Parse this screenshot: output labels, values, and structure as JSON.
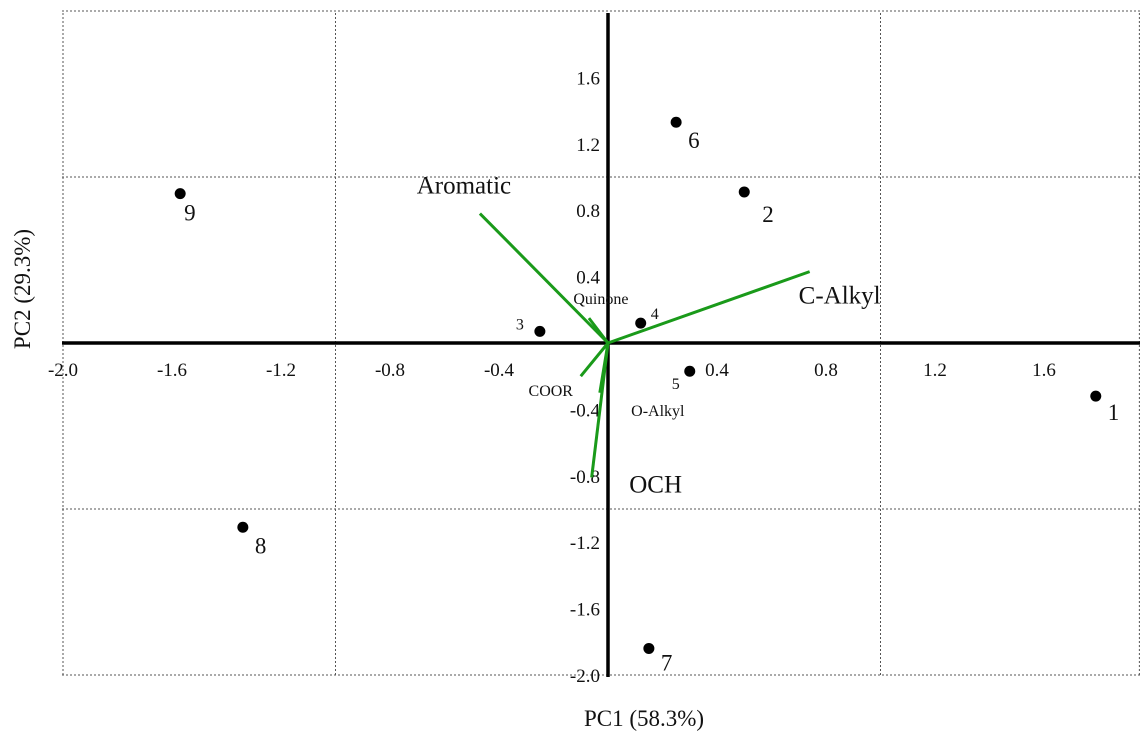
{
  "chart_data": {
    "type": "scatter",
    "xlabel": "PC1 (58.3%)",
    "ylabel": "PC2 (29.3%)",
    "xlim": [
      -2.0,
      1.95
    ],
    "ylim": [
      -2.05,
      2.05
    ],
    "x_ticks": [
      -2.0,
      -1.6,
      -1.2,
      -0.8,
      -0.4,
      0.4,
      0.8,
      1.2,
      1.6
    ],
    "x_tick_labels": [
      "-2.0",
      "-1.6",
      "-1.2",
      "-0.8",
      "-0.4",
      "0.4",
      "0.8",
      "1.2",
      "1.6"
    ],
    "y_ticks": [
      1.6,
      1.2,
      0.8,
      0.4,
      -0.4,
      -0.8,
      -1.2,
      -1.6,
      -2.0
    ],
    "y_tick_labels": [
      "1.6",
      "1.2",
      "0.8",
      "0.4",
      "-0.4",
      "-0.8",
      "-1.2",
      "-1.6",
      "-2.0"
    ],
    "grid": true,
    "grid_x": [
      -2.0,
      -1.0,
      1.0,
      1.95
    ],
    "grid_y": [
      2.0,
      1.0,
      -1.0,
      -2.0
    ],
    "points": [
      {
        "label": "1",
        "x": 1.79,
        "y": -0.32
      },
      {
        "label": "2",
        "x": 0.5,
        "y": 0.91
      },
      {
        "label": "3",
        "x": -0.25,
        "y": 0.07
      },
      {
        "label": "4",
        "x": 0.12,
        "y": 0.12
      },
      {
        "label": "5",
        "x": 0.3,
        "y": -0.17
      },
      {
        "label": "6",
        "x": 0.25,
        "y": 1.33
      },
      {
        "label": "7",
        "x": 0.15,
        "y": -1.84
      },
      {
        "label": "8",
        "x": -1.34,
        "y": -1.11
      },
      {
        "label": "9",
        "x": -1.57,
        "y": 0.9
      }
    ],
    "loadings": [
      {
        "label": "Aromatic",
        "x": -0.47,
        "y": 0.78
      },
      {
        "label": "C-Alkyl",
        "x": 0.74,
        "y": 0.43
      },
      {
        "label": "Quinone",
        "x": -0.07,
        "y": 0.15
      },
      {
        "label": "COOR",
        "x": -0.1,
        "y": -0.2
      },
      {
        "label": "O-Alkyl",
        "x": -0.03,
        "y": -0.3
      },
      {
        "label": "OCH",
        "x": -0.06,
        "y": -0.81
      }
    ],
    "loading_color": "#1a9a1a",
    "point_color": "#000000"
  }
}
